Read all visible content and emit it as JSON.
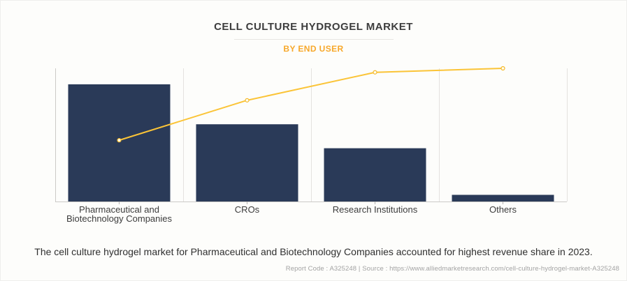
{
  "header": {
    "title": "CELL CULTURE HYDROGEL MARKET",
    "subtitle": "BY END USER"
  },
  "chart_data": {
    "type": "bar",
    "subtype": "pareto (bars with cumulative share line)",
    "title": "CELL CULTURE HYDROGEL MARKET",
    "subtitle": "BY END USER",
    "categories": [
      "Pharmaceutical and Biotechnology Companies",
      "CROs",
      "Research Institutions",
      "Others"
    ],
    "series": [
      {
        "name": "revenue-share-bars",
        "type": "bar",
        "values": [
          88,
          58,
          40,
          5
        ],
        "color": "#2a3a58"
      },
      {
        "name": "cumulative-share-line",
        "type": "line",
        "values": [
          46,
          76,
          97,
          100
        ],
        "color": "#fbc437"
      }
    ],
    "value_notes": "no numeric axis labels visible; values estimated as % of plot height",
    "xlabel": "",
    "ylabel": "",
    "ylim": [
      0,
      100
    ],
    "y_axis_labels_visible": false,
    "grid": "vertical-gridlines-only",
    "legend": "none",
    "colors": {
      "bar": "#2a3a58",
      "line": "#fbc437",
      "marker_fill": "#fffdf0",
      "marker_stroke": "#f5b92b",
      "gridline": "#e4e2df",
      "axis": "#cccac7",
      "tick": "#b5b3b0"
    }
  },
  "annotation": {
    "text": "The cell culture hydrogel market for Pharmaceutical and Biotechnology Companies accounted for highest revenue share in 2023."
  },
  "footer": {
    "text": "Report Code : A325248  |  Source : https://www.alliedmarketresearch.com/cell-culture-hydrogel-market-A325248"
  }
}
